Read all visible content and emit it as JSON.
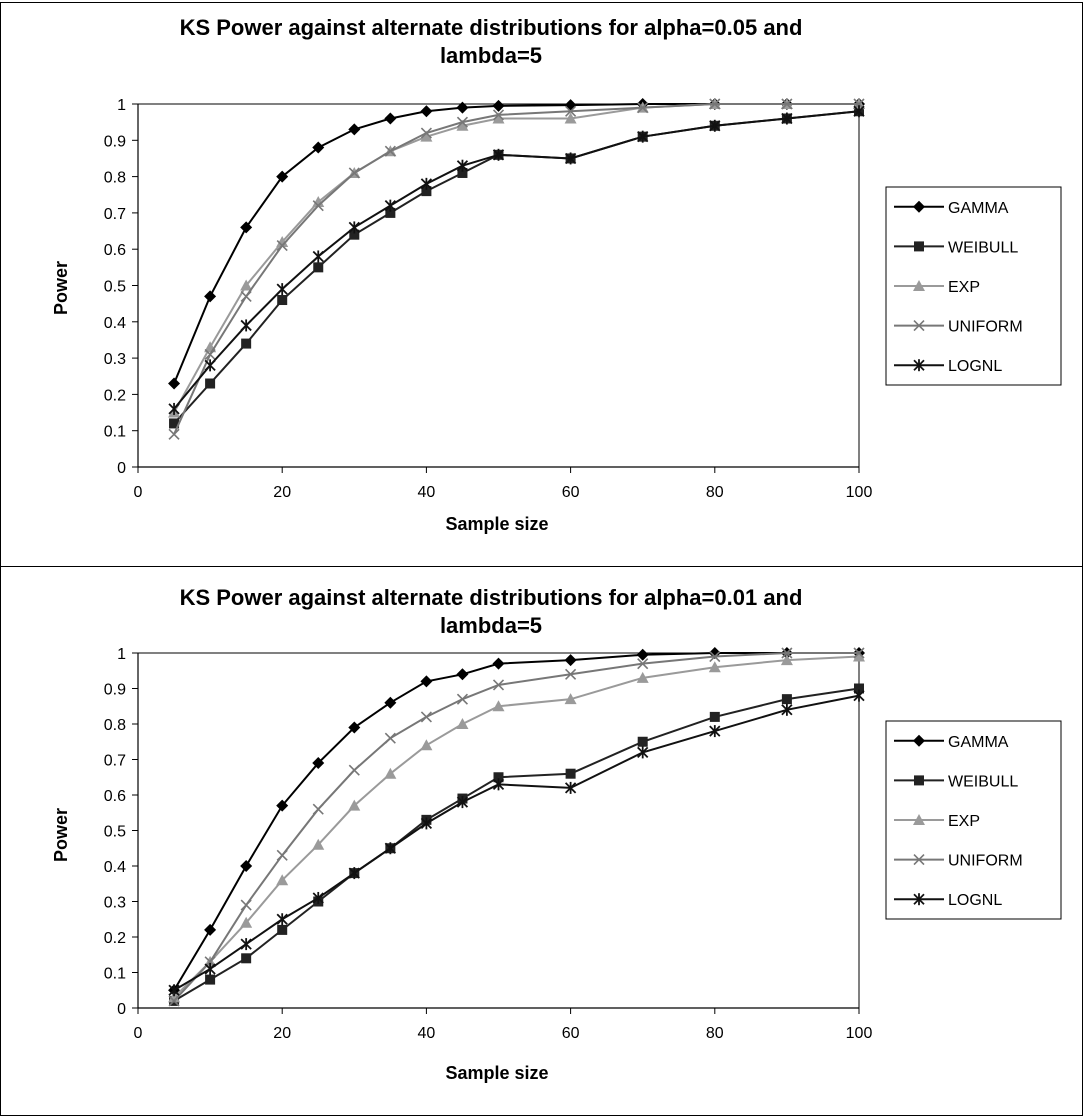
{
  "chart_data": [
    {
      "type": "line",
      "title_line1": "KS Power against alternate distributions for alpha=0.05 and",
      "title_line2": "lambda=5",
      "xlabel": "Sample size",
      "ylabel": "Power",
      "xlim": [
        0,
        100
      ],
      "ylim": [
        0,
        1
      ],
      "xticks": [
        0,
        20,
        40,
        60,
        80,
        100
      ],
      "yticks": [
        0,
        0.1,
        0.2,
        0.3,
        0.4,
        0.5,
        0.6,
        0.7,
        0.8,
        0.9,
        1
      ],
      "x": [
        5,
        10,
        15,
        20,
        25,
        30,
        35,
        40,
        45,
        50,
        60,
        70,
        80,
        90,
        100
      ],
      "legend_position": "right",
      "series": [
        {
          "name": "GAMMA",
          "marker": "diamond",
          "color": "#000000",
          "values": [
            0.23,
            0.47,
            0.66,
            0.8,
            0.88,
            0.93,
            0.96,
            0.98,
            0.99,
            0.995,
            0.997,
            1.0,
            1.0,
            1.0,
            1.0
          ]
        },
        {
          "name": "WEIBULL",
          "marker": "square",
          "color": "#222222",
          "values": [
            0.12,
            0.23,
            0.34,
            0.46,
            0.55,
            0.64,
            0.7,
            0.76,
            0.81,
            0.86,
            0.85,
            0.91,
            0.94,
            0.96,
            0.98
          ]
        },
        {
          "name": "EXP",
          "marker": "triangle",
          "color": "#9a9a9a",
          "values": [
            0.15,
            0.33,
            0.5,
            0.62,
            0.73,
            0.81,
            0.87,
            0.91,
            0.94,
            0.96,
            0.96,
            0.99,
            1.0,
            1.0,
            1.0
          ]
        },
        {
          "name": "UNIFORM",
          "marker": "x",
          "color": "#777777",
          "values": [
            0.09,
            0.31,
            0.47,
            0.61,
            0.72,
            0.81,
            0.87,
            0.92,
            0.95,
            0.97,
            0.98,
            0.99,
            1.0,
            1.0,
            1.0
          ]
        },
        {
          "name": "LOGNL",
          "marker": "star",
          "color": "#111111",
          "values": [
            0.16,
            0.28,
            0.39,
            0.49,
            0.58,
            0.66,
            0.72,
            0.78,
            0.83,
            0.86,
            0.85,
            0.91,
            0.94,
            0.96,
            0.98
          ]
        }
      ]
    },
    {
      "type": "line",
      "title_line1": "KS Power against alternate distributions for alpha=0.01 and",
      "title_line2": "lambda=5",
      "xlabel": "Sample size",
      "ylabel": "Power",
      "xlim": [
        0,
        100
      ],
      "ylim": [
        0,
        1
      ],
      "xticks": [
        0,
        20,
        40,
        60,
        80,
        100
      ],
      "yticks": [
        0,
        0.1,
        0.2,
        0.3,
        0.4,
        0.5,
        0.6,
        0.7,
        0.8,
        0.9,
        1
      ],
      "x": [
        5,
        10,
        15,
        20,
        25,
        30,
        35,
        40,
        45,
        50,
        60,
        70,
        80,
        90,
        100
      ],
      "legend_position": "right",
      "series": [
        {
          "name": "GAMMA",
          "marker": "diamond",
          "color": "#000000",
          "values": [
            0.05,
            0.22,
            0.4,
            0.57,
            0.69,
            0.79,
            0.86,
            0.92,
            0.94,
            0.97,
            0.98,
            0.995,
            1.0,
            1.0,
            1.0
          ]
        },
        {
          "name": "WEIBULL",
          "marker": "square",
          "color": "#222222",
          "values": [
            0.02,
            0.08,
            0.14,
            0.22,
            0.3,
            0.38,
            0.45,
            0.53,
            0.59,
            0.65,
            0.66,
            0.75,
            0.82,
            0.87,
            0.9
          ]
        },
        {
          "name": "EXP",
          "marker": "triangle",
          "color": "#9a9a9a",
          "values": [
            0.03,
            0.13,
            0.24,
            0.36,
            0.46,
            0.57,
            0.66,
            0.74,
            0.8,
            0.85,
            0.87,
            0.93,
            0.96,
            0.98,
            0.99
          ]
        },
        {
          "name": "UNIFORM",
          "marker": "x",
          "color": "#777777",
          "values": [
            0.02,
            0.13,
            0.29,
            0.43,
            0.56,
            0.67,
            0.76,
            0.82,
            0.87,
            0.91,
            0.94,
            0.97,
            0.99,
            1.0,
            1.0
          ]
        },
        {
          "name": "LOGNL",
          "marker": "star",
          "color": "#111111",
          "values": [
            0.05,
            0.11,
            0.18,
            0.25,
            0.31,
            0.38,
            0.45,
            0.52,
            0.58,
            0.63,
            0.62,
            0.72,
            0.78,
            0.84,
            0.88
          ]
        }
      ]
    }
  ]
}
